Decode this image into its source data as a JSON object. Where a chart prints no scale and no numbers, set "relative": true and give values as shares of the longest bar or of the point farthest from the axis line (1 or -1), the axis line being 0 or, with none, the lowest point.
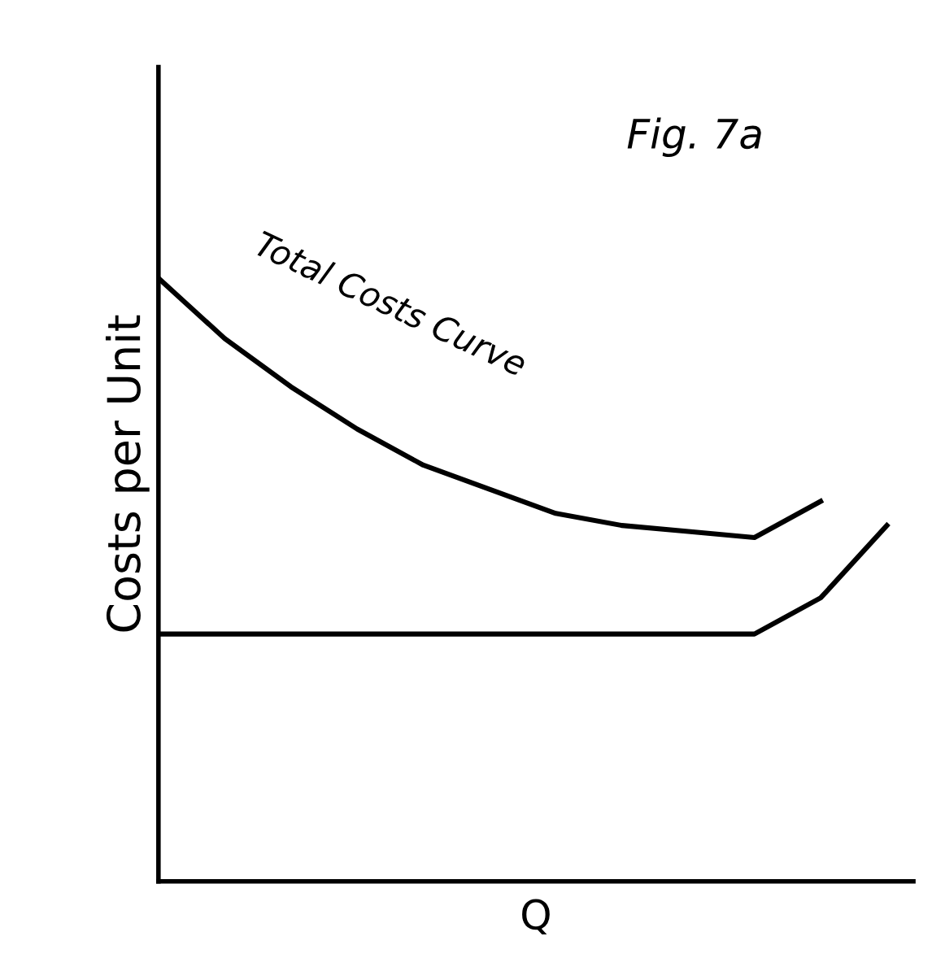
{
  "chart_data": {
    "type": "line",
    "title": "Fig. 7a",
    "xlabel": "Q",
    "ylabel": "Costs per Unit",
    "relative": true,
    "categories": [
      null,
      null,
      null,
      null,
      null,
      null,
      null,
      null,
      null,
      null,
      null,
      null
    ],
    "series": [
      {
        "color": "#000000",
        "values": [
          1,
          0.9,
          0.82,
          0.75,
          0.69,
          0.65,
          0.61,
          0.59,
          0.58,
          0.57,
          0.63,
          null
        ]
      },
      {
        "color": "#000000",
        "values": [
          0.41,
          0.41,
          0.41,
          0.41,
          0.41,
          0.41,
          0.41,
          0.41,
          0.41,
          0.41,
          0.47,
          0.59
        ]
      }
    ],
    "annotations": [
      "Total Costs Curve"
    ],
    "grid": false,
    "marker": "none",
    "line_style": "solid"
  }
}
